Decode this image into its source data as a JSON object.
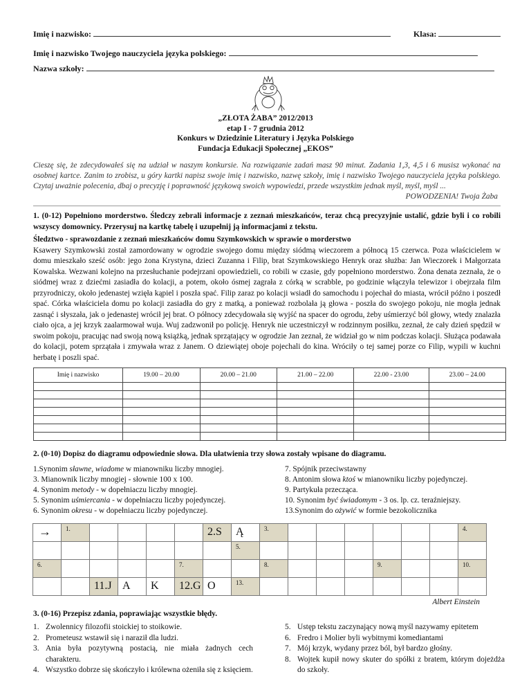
{
  "header": {
    "name_label": "Imię i nazwisko:",
    "class_label": "Klasa:",
    "teacher_label": "Imię i  nazwisko Twojego  nauczyciela języka polskiego:",
    "school_label": "Nazwa szkoły:"
  },
  "logo": {
    "name": "frog-with-crown"
  },
  "title": {
    "line1": "„ZŁOTA ŻABA”  2012/2013",
    "line2": "etap I  -  7 grudnia 2012",
    "line3": "Konkurs w Dziedzinie  Literatury i Języka Polskiego",
    "line4": "Fundacja Edukacji Społecznej „EKOS”"
  },
  "intro": {
    "text": "Cieszę się, że zdecydowałeś się na udział w naszym konkursie.  Na rozwiązanie zadań  masz  90  minut.  Zadania 1,3, 4,5 i 6  musisz wykonać na osobnej kartce. Zanim to zrobisz, u góry kartki napisz swoje imię i nazwisko, nazwę szkoły, imię i nazwisko Twojego nauczyciela języka polskiego. Czytaj uważnie polecenia, dbaj o precyzję i poprawność językową  swoich wypowiedzi, przede wszystkim jednak myśl, myśl, myśl ...",
    "signoff": "POWODZENIA!     Twoja Żaba"
  },
  "task1": {
    "heading": "1. (0-12)  Popełniono morderstwo.  Śledczy zebrali informacje z zeznań mieszkańców, teraz chcą precyzyjnie ustalić, gdzie byli i co robili wszyscy domownicy. Przerysuj  na kartkę tabelę i uzupełnij ją  informacjami z tekstu.",
    "subtitle": "Śledztwo - sprawozdanie z zeznań mieszkańców domu Szymkowskich  w sprawie o  morderstwo",
    "text": "Ksawery Szymkowski został zamordowany w ogrodzie swojego domu między siódmą wieczorem a północą 15 czerwca. Poza właścicielem w domu mieszkało sześć osób: jego żona Krystyna, dzieci Zuzanna i Filip, brat Szymkowskiego Henryk oraz służba: Jan Wieczorek i Małgorzata Kowalska.  Wezwani kolejno na przesłuchanie  podejrzani opowiedzieli, co robili w czasie, gdy popełniono morderstwo.  Żona denata zeznała, że o siódmej wraz z dziećmi zasiadła do kolacji, a potem, około ósmej zagrała z córką w scrabble, po godzinie włączyła telewizor i obejrzała film przyrodniczy, około jedenastej wzięła kąpiel i poszła spać. Filip zaraz po kolacji wsiadł do samochodu i pojechał do miasta, wrócił późno i poszedł spać.  Córka właściciela domu po kolacji zasiadła do gry z matką, a ponieważ rozbolała ją głowa - poszła do swojego pokoju, nie mogła jednak zasnąć i słyszała, jak o jedenastej wrócił jej brat. O północy zdecydowała się wyjść na spacer do ogrodu, żeby uśmierzyć ból głowy, wtedy znalazła ciało ojca, a jej krzyk zaalarmował wuja. Wuj zadzwonił po policję. Henryk nie uczestniczył w rodzinnym posiłku, zeznał, że cały dzień spędził w swoim pokoju, pracując nad swoją nową książką, jednak sprzątający  w ogrodzie Jan zeznał, że widział go w nim podczas kolacji. Służąca podawała do kolacji, potem sprzątała i zmywała wraz z Janem. O dziewiątej oboje pojechali do kina. Wróciły o tej samej porze co Filip, wypili w kuchni herbatę i poszli spać.",
    "table_headers": [
      "Imię i nazwisko",
      "19.00 – 20.00",
      "20.00 – 21.00",
      "21.00 –  22.00",
      "22.00 - 23.00",
      "23.00 –  24.00"
    ]
  },
  "task2": {
    "heading": "2. (0-10) Dopisz do diagramu odpowiednie słowa.  Dla ułatwienia trzy słowa zostały wpisane do diagramu.",
    "clues_left": [
      {
        "pre": "1.Synonim  ",
        "em": "sławne, wiadome",
        "post": " w mianowniku liczby mnogiej."
      },
      {
        "pre": "3. Mianownik  liczby mnogiej - słownie 100 x 100.",
        "em": "",
        "post": ""
      },
      {
        "pre": "4. Synonim  ",
        "em": "metody",
        "post": " - w dopełniaczu liczby mnogiej."
      },
      {
        "pre": "5. Synonim ",
        "em": "uśmiercania",
        "post": " - w dopełniaczu liczby pojedynczej."
      },
      {
        "pre": "6. Synonim ",
        "em": "okresu",
        "post": "  - w dopełniaczu liczby pojedynczej."
      }
    ],
    "clues_right": [
      {
        "pre": "7. Spójnik przeciwstawny",
        "em": "",
        "post": ""
      },
      {
        "pre": "8. Antonim słowa ",
        "em": "ktoś",
        "post": " w mianowniku liczby pojedynczej."
      },
      {
        "pre": "9. Partykuła przecząca.",
        "em": "",
        "post": ""
      },
      {
        "pre": "10. Synonim  ",
        "em": "być świadomym",
        "post": " - 3 os. lp. cz. teraźniejszy."
      },
      {
        "pre": "13.Synonim do ",
        "em": "ożywić",
        "post": " w formie bezokolicznika"
      }
    ],
    "grid": [
      [
        {
          "t": "→",
          "arrow": true
        },
        {
          "t": "1.",
          "s": true
        },
        {},
        {},
        {},
        {},
        {
          "t": "2.S",
          "s": true,
          "big": true
        },
        {
          "t": "Ą",
          "big": true
        },
        {
          "t": "3.",
          "s": true
        },
        {},
        {},
        {},
        {},
        {},
        {},
        {
          "t": "4.",
          "s": true
        }
      ],
      [
        {},
        {},
        {},
        {},
        {},
        {},
        {},
        {
          "t": "5.",
          "s": true
        },
        {},
        {},
        {},
        {},
        {},
        {},
        {},
        {}
      ],
      [
        {
          "t": "6.",
          "s": true
        },
        {},
        {},
        {},
        {},
        {
          "t": "7.",
          "s": true
        },
        {},
        {},
        {
          "t": "8.",
          "s": true
        },
        {},
        {},
        {},
        {
          "t": "9.",
          "s": true
        },
        {},
        {},
        {
          "t": "10.",
          "s": true
        }
      ],
      [
        {},
        {},
        {
          "t": "11.J",
          "s": true,
          "big": true
        },
        {
          "t": "A",
          "big": true
        },
        {
          "t": "K",
          "big": true
        },
        {
          "t": "12.G",
          "s": true,
          "big": true
        },
        {
          "t": "O",
          "big": true
        },
        {
          "t": "13.",
          "s": true
        },
        {},
        {},
        {},
        {},
        {},
        {},
        {},
        {}
      ]
    ],
    "attribution": "Albert Einstein"
  },
  "task3": {
    "heading": "3. (0-16) Przepisz zdania, poprawiając wszystkie  błędy.",
    "left": [
      {
        "n": "1.",
        "t": "Zwolennicy filozofii stoickiej to stoikowie."
      },
      {
        "n": "2.",
        "t": "Prometeusz wstawił się i naraził dla ludzi."
      },
      {
        "n": "3.",
        "t": "Ania była pozytywną postacią, nie miała żadnych cech charakteru."
      },
      {
        "n": "4.",
        "t": "Wszystko dobrze się skończyło i królewna ożeniła się z księciem."
      }
    ],
    "right": [
      {
        "n": "5.",
        "t": "Ustęp tekstu zaczynający nową myśl nazywamy epitetem"
      },
      {
        "n": "6.",
        "t": "Fredro i Molier byli wybitnymi komediantami"
      },
      {
        "n": "7.",
        "t": "Mój krzyk, wydany przez ból, był bardzo głośny."
      },
      {
        "n": "8.",
        "t": "Wojtek kupił nowy skuter do spółki z bratem, którym dojeżdża do szkoły."
      }
    ]
  },
  "colors": {
    "shaded_cell": "#ddd8c4"
  }
}
